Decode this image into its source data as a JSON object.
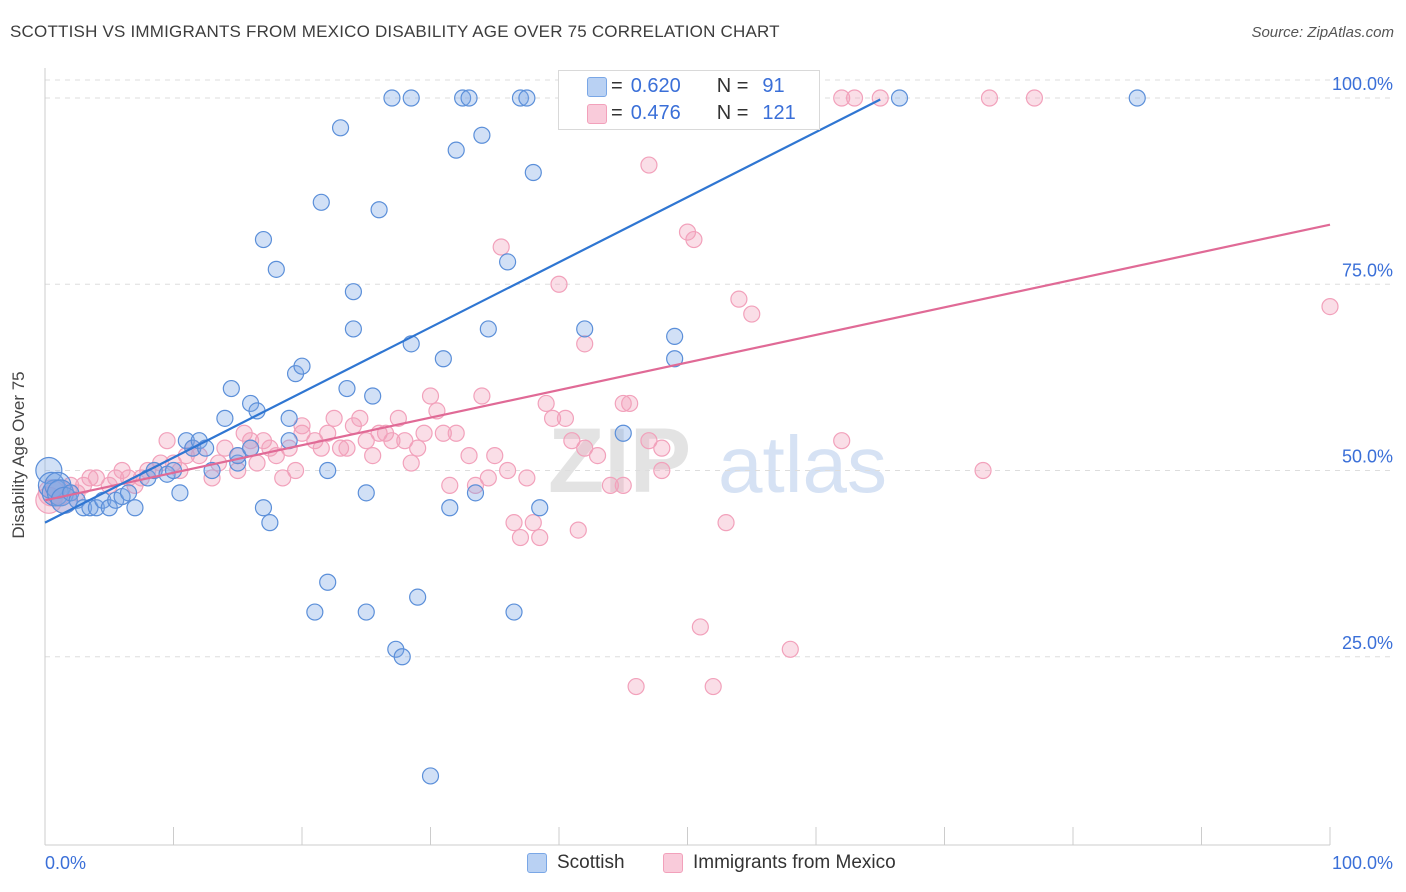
{
  "title": "SCOTTISH VS IMMIGRANTS FROM MEXICO DISABILITY AGE OVER 75 CORRELATION CHART",
  "source": "Source: ZipAtlas.com",
  "watermark": {
    "left": "ZIP",
    "right": "atlas"
  },
  "legend": {
    "scottish": {
      "r_label": "R =",
      "r_value": "0.620",
      "n_label": "N =",
      "n_value": "91"
    },
    "mexico": {
      "r_label": "R =",
      "r_value": "0.476",
      "n_label": "N =",
      "n_value": "121"
    }
  },
  "bottom_legend": {
    "scottish": "Scottish",
    "mexico": "Immigrants from Mexico"
  },
  "colors": {
    "scottish": "#7aa7e6",
    "scottish_line": "#2f76d2",
    "mexico": "#f2a1bb",
    "mexico_line": "#e06a96",
    "tick_text": "#3a6fd8"
  },
  "chart_data": {
    "type": "scatter",
    "xlabel": "",
    "ylabel": "Disability Age Over 75",
    "xlim": [
      0,
      100
    ],
    "ylim": [
      0,
      100
    ],
    "x_tick_labels": [
      "0.0%",
      "100.0%"
    ],
    "y_tick_labels": [
      "25.0%",
      "50.0%",
      "75.0%",
      "100.0%"
    ],
    "y_ticks": [
      25,
      50,
      75,
      100
    ],
    "legend_position": "top-center",
    "grid": true,
    "series": [
      {
        "name": "Scottish",
        "trend": {
          "x": [
            0,
            65
          ],
          "y": [
            43,
            99.8
          ]
        },
        "points": [
          [
            0.3,
            50
          ],
          [
            0.5,
            48
          ],
          [
            0.8,
            47
          ],
          [
            1.0,
            48
          ],
          [
            1.2,
            47
          ],
          [
            1.5,
            46
          ],
          [
            2,
            47
          ],
          [
            2.5,
            46
          ],
          [
            3,
            45
          ],
          [
            3.5,
            45
          ],
          [
            4,
            45
          ],
          [
            4.5,
            46
          ],
          [
            5,
            45
          ],
          [
            5.5,
            46
          ],
          [
            6,
            46.5
          ],
          [
            6.5,
            47
          ],
          [
            7,
            45
          ],
          [
            8,
            49
          ],
          [
            8.5,
            50
          ],
          [
            9.5,
            49.5
          ],
          [
            10,
            50
          ],
          [
            10.5,
            47
          ],
          [
            11,
            54
          ],
          [
            11.5,
            53
          ],
          [
            12,
            54
          ],
          [
            12.5,
            53
          ],
          [
            13,
            50
          ],
          [
            14,
            57
          ],
          [
            14.5,
            61
          ],
          [
            15,
            51
          ],
          [
            15,
            52
          ],
          [
            16,
            59
          ],
          [
            16,
            53
          ],
          [
            16.5,
            58
          ],
          [
            17,
            45
          ],
          [
            17,
            81
          ],
          [
            17.5,
            43
          ],
          [
            18,
            77
          ],
          [
            19,
            57
          ],
          [
            19,
            54
          ],
          [
            19.5,
            63
          ],
          [
            20,
            64
          ],
          [
            21,
            31
          ],
          [
            21.5,
            86
          ],
          [
            22,
            35
          ],
          [
            22,
            50
          ],
          [
            23,
            96
          ],
          [
            23.5,
            61
          ],
          [
            24,
            69
          ],
          [
            24,
            74
          ],
          [
            25,
            31
          ],
          [
            25,
            47
          ],
          [
            25.5,
            60
          ],
          [
            26,
            85
          ],
          [
            27,
            100
          ],
          [
            27.3,
            26
          ],
          [
            27.8,
            25
          ],
          [
            28.5,
            100
          ],
          [
            28.5,
            67
          ],
          [
            29,
            33
          ],
          [
            30,
            9
          ],
          [
            31,
            65
          ],
          [
            31.5,
            45
          ],
          [
            32,
            93
          ],
          [
            32.5,
            100
          ],
          [
            33,
            100
          ],
          [
            33.5,
            47
          ],
          [
            34,
            95
          ],
          [
            34.5,
            69
          ],
          [
            36,
            78
          ],
          [
            36.5,
            31
          ],
          [
            37,
            100
          ],
          [
            37.5,
            100
          ],
          [
            38,
            90
          ],
          [
            38.5,
            45
          ],
          [
            41,
            100
          ],
          [
            42,
            69
          ],
          [
            45,
            55
          ],
          [
            48,
            100
          ],
          [
            49,
            68
          ],
          [
            49,
            65
          ],
          [
            50,
            100
          ],
          [
            55,
            100
          ],
          [
            58,
            100
          ],
          [
            66.5,
            100
          ],
          [
            85,
            100
          ]
        ]
      },
      {
        "name": "Immigrants from Mexico",
        "trend": {
          "x": [
            0,
            100
          ],
          "y": [
            46,
            83
          ]
        },
        "points": [
          [
            0.3,
            46
          ],
          [
            0.5,
            47
          ],
          [
            1,
            47
          ],
          [
            1.5,
            46
          ],
          [
            2,
            48
          ],
          [
            2.5,
            47
          ],
          [
            3,
            48
          ],
          [
            3.5,
            49
          ],
          [
            4,
            49
          ],
          [
            5,
            48
          ],
          [
            5.5,
            49
          ],
          [
            6,
            50
          ],
          [
            6.5,
            49
          ],
          [
            7,
            48
          ],
          [
            7.5,
            49
          ],
          [
            8,
            50
          ],
          [
            8.5,
            50
          ],
          [
            9,
            51
          ],
          [
            9.5,
            54
          ],
          [
            10,
            51
          ],
          [
            10.5,
            50
          ],
          [
            11,
            52
          ],
          [
            11.5,
            53
          ],
          [
            12,
            52
          ],
          [
            13,
            49
          ],
          [
            13.5,
            51
          ],
          [
            14,
            53
          ],
          [
            15,
            50
          ],
          [
            15,
            52
          ],
          [
            15.5,
            55
          ],
          [
            16,
            53
          ],
          [
            16,
            54
          ],
          [
            16.5,
            51
          ],
          [
            17,
            54
          ],
          [
            17.5,
            53
          ],
          [
            18,
            52
          ],
          [
            18.5,
            49
          ],
          [
            19,
            53
          ],
          [
            19.5,
            50
          ],
          [
            20,
            55
          ],
          [
            20,
            56
          ],
          [
            21,
            54
          ],
          [
            21.5,
            53
          ],
          [
            22,
            55
          ],
          [
            22.5,
            57
          ],
          [
            23,
            53
          ],
          [
            23.5,
            53
          ],
          [
            24,
            56
          ],
          [
            24.5,
            57
          ],
          [
            25,
            54
          ],
          [
            25.5,
            52
          ],
          [
            26,
            55
          ],
          [
            26.5,
            55
          ],
          [
            27,
            54
          ],
          [
            27.5,
            57
          ],
          [
            28,
            54
          ],
          [
            28.5,
            51
          ],
          [
            29,
            53
          ],
          [
            29.5,
            55
          ],
          [
            30,
            60
          ],
          [
            30.5,
            58
          ],
          [
            31,
            55
          ],
          [
            31.5,
            48
          ],
          [
            32,
            55
          ],
          [
            33,
            52
          ],
          [
            33.5,
            48
          ],
          [
            34,
            60
          ],
          [
            34.5,
            49
          ],
          [
            35,
            52
          ],
          [
            35.5,
            80
          ],
          [
            36,
            50
          ],
          [
            36.5,
            43
          ],
          [
            37,
            41
          ],
          [
            37.5,
            49
          ],
          [
            38,
            43
          ],
          [
            38.5,
            41
          ],
          [
            39,
            59
          ],
          [
            39.5,
            57
          ],
          [
            40,
            75
          ],
          [
            40.5,
            57
          ],
          [
            41,
            54
          ],
          [
            41.5,
            42
          ],
          [
            42,
            67
          ],
          [
            42,
            53
          ],
          [
            43,
            52
          ],
          [
            44,
            48
          ],
          [
            45,
            48
          ],
          [
            45,
            59
          ],
          [
            45.5,
            59
          ],
          [
            46,
            21
          ],
          [
            47,
            54
          ],
          [
            47,
            91
          ],
          [
            48,
            50
          ],
          [
            48,
            53
          ],
          [
            50,
            82
          ],
          [
            50.5,
            81
          ],
          [
            51,
            29
          ],
          [
            52,
            21
          ],
          [
            53,
            43
          ],
          [
            54,
            73
          ],
          [
            55,
            71
          ],
          [
            58,
            26
          ],
          [
            62,
            54
          ],
          [
            62,
            100
          ],
          [
            63,
            100
          ],
          [
            65,
            100
          ],
          [
            73,
            50
          ],
          [
            73.5,
            100
          ],
          [
            77,
            100
          ],
          [
            100,
            72
          ]
        ]
      }
    ]
  }
}
